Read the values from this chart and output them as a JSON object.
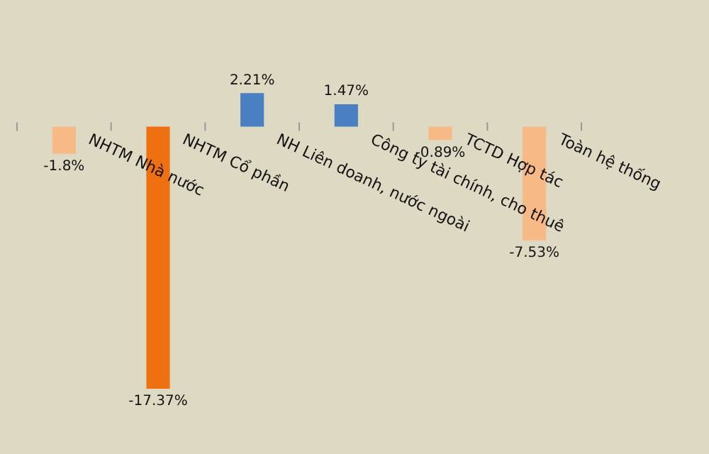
{
  "chart_data": {
    "type": "bar",
    "categories": [
      "NHTM Nhà nước",
      "NHTM Cổ phần",
      "NH Liên doanh, nước ngoài",
      "Công ty tài chính, cho thuê",
      "TCTD Hợp tác",
      "Toàn hệ thống"
    ],
    "values": [
      -1.8,
      -17.37,
      2.21,
      1.47,
      -0.89,
      -7.53
    ],
    "colors": [
      "#f7b985",
      "#ee7010",
      "#4a7fc1",
      "#4a7fc1",
      "#f7b985",
      "#f7b985"
    ],
    "value_labels": [
      "-1.8%",
      "-17.37%",
      "2.21%",
      "1.47%",
      "-0.89%",
      "-7.53%"
    ],
    "legend": false
  }
}
